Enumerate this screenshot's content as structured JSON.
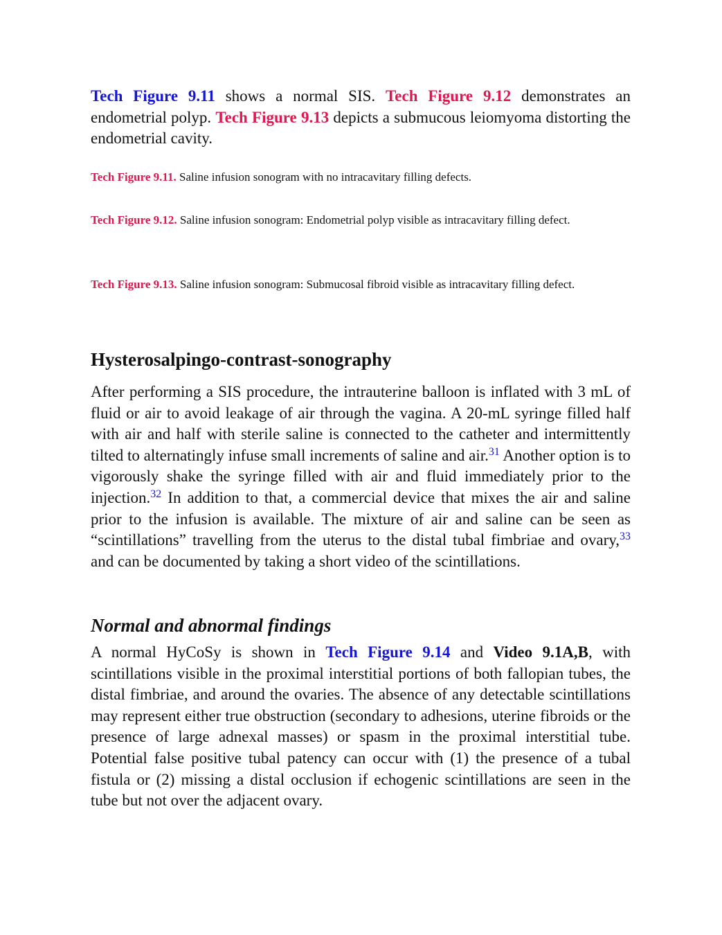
{
  "intro": {
    "runs": [
      "Tech Figure 9.11",
      " shows a normal SIS. ",
      "Tech Figure 9.12",
      " demonstrates an endometrial polyp. ",
      "Tech Figure 9.13",
      " depicts a submucous leiomyoma distorting the endometrial cavity."
    ]
  },
  "captions": [
    {
      "label": "Tech Figure 9.11.",
      "text": " Saline infusion sonogram with no intracavitary filling defects."
    },
    {
      "label": "Tech Figure 9.12.",
      "text": " Saline infusion sonogram: Endometrial polyp visible as intracavitary filling defect."
    },
    {
      "label": "Tech Figure 9.13.",
      "text": " Saline infusion sonogram: Submucosal fibroid visible as intracavitary filling defect."
    }
  ],
  "section": {
    "heading": "Hysterosalpingo-contrast-sonography",
    "runs": [
      "After performing a SIS procedure, the intrauterine balloon is inflated with 3 mL of fluid or air to avoid leakage of air through the vagina. A 20-mL syringe filled half with air and half with sterile saline is connected to the catheter and intermittently tilted to alternatingly infuse small increments of saline and air.",
      "31",
      " Another option is to vigorously shake the syringe filled with air and fluid immediately prior to the injection.",
      "32",
      " In addition to that, a commercial device that mixes the air and saline prior to the infusion is available. The mixture of air and saline can be seen as “scintillations” travelling from the uterus to the distal tubal fimbriae and ovary,",
      "33",
      " and can be documented by taking a short video of the scintillations."
    ]
  },
  "subsection": {
    "heading": "Normal and abnormal findings",
    "runs": [
      "A normal HyCoSy is shown in ",
      "Tech Figure 9.14",
      " and ",
      "Video 9.1A,B",
      ", with scintillations visible in the proximal interstitial portions of both fallopian tubes, the distal fimbriae, and around the ovaries. The absence of any detectable scintillations may represent either true obstruction (secondary to adhesions, uterine fibroids or the presence of large adnexal masses) or spasm in the proximal interstitial tube. Potential false positive tubal patency can occur with (1) the presence of a tubal fistula or (2) missing a distal occlusion if echogenic scintillations are seen in the tube but not over the adjacent ovary."
    ]
  }
}
